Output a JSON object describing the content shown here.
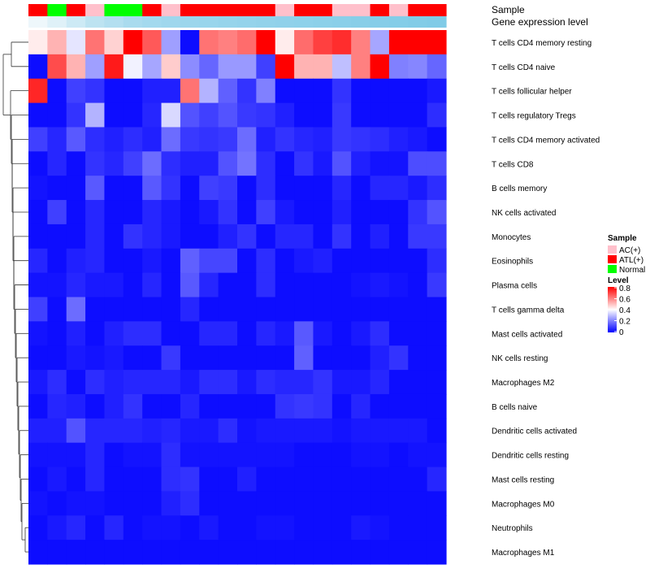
{
  "chart_data": {
    "type": "heatmap",
    "annotations": {
      "sample_title": "Sample",
      "gene_title": "Gene expression level",
      "sample_row": [
        "ATL(+)",
        "Normal",
        "ATL(+)",
        "AC(+)",
        "Normal",
        "Normal",
        "ATL(+)",
        "AC(+)",
        "ATL(+)",
        "ATL(+)",
        "ATL(+)",
        "ATL(+)",
        "ATL(+)",
        "AC(+)",
        "ATL(+)",
        "ATL(+)",
        "AC(+)",
        "AC(+)",
        "ATL(+)",
        "AC(+)",
        "ATL(+)",
        "ATL(+)"
      ],
      "gene_row_colors": [
        "#eef7fb",
        "#dff1f8",
        "#cdeaf5",
        "#bde3f1",
        "#b3dff0",
        "#a9dbee",
        "#a3d9ee",
        "#9fd7ed",
        "#9cd6ec",
        "#99d5ec",
        "#96d4eb",
        "#94d3eb",
        "#92d2ea",
        "#90d1ea",
        "#8ed1ea",
        "#8cd0e9",
        "#8acfe9",
        "#88cee8",
        "#86cde8",
        "#84cde8",
        "#82cce7",
        "#80cbe7"
      ]
    },
    "rows": [
      "T cells CD4 memory resting",
      "T cells CD4 naive",
      "T cells follicular helper",
      "T cells regulatory  Tregs",
      "T cells CD4 memory activated",
      "T cells CD8",
      "B cells memory",
      "NK cells activated",
      "Monocytes",
      "Eosinophils",
      "Plasma cells",
      "T cells gamma delta",
      "Mast cells activated",
      "NK cells resting",
      "Macrophages M2",
      "B cells naive",
      "Dendritic cells activated",
      "Dendritic cells resting",
      "Mast cells resting",
      "Macrophages M0",
      "Neutrophils",
      "Macrophages M1"
    ],
    "values": [
      [
        0.43,
        0.52,
        0.36,
        0.62,
        0.47,
        0.8,
        0.66,
        0.25,
        0.02,
        0.62,
        0.6,
        0.63,
        0.8,
        0.43,
        0.63,
        0.7,
        0.73,
        0.6,
        0.26,
        0.8,
        0.8,
        0.8
      ],
      [
        0.02,
        0.68,
        0.52,
        0.25,
        0.76,
        0.38,
        0.26,
        0.48,
        0.22,
        0.16,
        0.24,
        0.24,
        0.1,
        0.8,
        0.52,
        0.52,
        0.3,
        0.6,
        0.8,
        0.2,
        0.21,
        0.16
      ],
      [
        0.74,
        0.02,
        0.1,
        0.08,
        0.02,
        0.02,
        0.05,
        0.05,
        0.62,
        0.28,
        0.15,
        0.08,
        0.2,
        0.02,
        0.02,
        0.02,
        0.08,
        0.02,
        0.02,
        0.02,
        0.02,
        0.04
      ],
      [
        0.02,
        0.02,
        0.08,
        0.28,
        0.02,
        0.02,
        0.06,
        0.34,
        0.13,
        0.1,
        0.13,
        0.09,
        0.08,
        0.05,
        0.02,
        0.02,
        0.09,
        0.02,
        0.02,
        0.02,
        0.02,
        0.07
      ],
      [
        0.1,
        0.06,
        0.14,
        0.07,
        0.05,
        0.07,
        0.05,
        0.17,
        0.09,
        0.08,
        0.09,
        0.17,
        0.05,
        0.08,
        0.06,
        0.05,
        0.09,
        0.08,
        0.07,
        0.05,
        0.04,
        0.02
      ],
      [
        0.02,
        0.06,
        0.02,
        0.08,
        0.06,
        0.1,
        0.17,
        0.07,
        0.05,
        0.05,
        0.13,
        0.18,
        0.07,
        0.02,
        0.08,
        0.04,
        0.13,
        0.05,
        0.03,
        0.03,
        0.12,
        0.12
      ],
      [
        0.03,
        0.02,
        0.02,
        0.14,
        0.02,
        0.02,
        0.14,
        0.08,
        0.02,
        0.1,
        0.09,
        0.02,
        0.07,
        0.02,
        0.02,
        0.02,
        0.06,
        0.02,
        0.06,
        0.06,
        0.04,
        0.07
      ],
      [
        0.02,
        0.1,
        0.02,
        0.06,
        0.02,
        0.02,
        0.06,
        0.04,
        0.02,
        0.04,
        0.08,
        0.02,
        0.1,
        0.04,
        0.02,
        0.02,
        0.05,
        0.02,
        0.02,
        0.02,
        0.08,
        0.13
      ],
      [
        0.02,
        0.02,
        0.02,
        0.06,
        0.02,
        0.08,
        0.06,
        0.04,
        0.02,
        0.02,
        0.05,
        0.08,
        0.02,
        0.06,
        0.06,
        0.02,
        0.08,
        0.02,
        0.05,
        0.02,
        0.09,
        0.09
      ],
      [
        0.06,
        0.02,
        0.05,
        0.06,
        0.02,
        0.02,
        0.04,
        0.02,
        0.15,
        0.11,
        0.11,
        0.02,
        0.07,
        0.02,
        0.04,
        0.05,
        0.02,
        0.02,
        0.02,
        0.02,
        0.02,
        0.07
      ],
      [
        0.03,
        0.03,
        0.06,
        0.04,
        0.04,
        0.02,
        0.06,
        0.02,
        0.14,
        0.06,
        0.02,
        0.02,
        0.07,
        0.02,
        0.02,
        0.02,
        0.02,
        0.03,
        0.04,
        0.03,
        0.02,
        0.09
      ],
      [
        0.1,
        0.02,
        0.17,
        0.02,
        0.02,
        0.02,
        0.02,
        0.02,
        0.06,
        0.02,
        0.02,
        0.02,
        0.02,
        0.02,
        0.02,
        0.02,
        0.02,
        0.02,
        0.02,
        0.02,
        0.02,
        0.02
      ],
      [
        0.03,
        0.02,
        0.05,
        0.02,
        0.05,
        0.07,
        0.07,
        0.02,
        0.02,
        0.06,
        0.06,
        0.02,
        0.06,
        0.04,
        0.14,
        0.04,
        0.02,
        0.04,
        0.07,
        0.02,
        0.02,
        0.02
      ],
      [
        0.02,
        0.02,
        0.04,
        0.03,
        0.04,
        0.02,
        0.02,
        0.09,
        0.02,
        0.02,
        0.02,
        0.02,
        0.02,
        0.02,
        0.15,
        0.02,
        0.02,
        0.02,
        0.05,
        0.08,
        0.02,
        0.02
      ],
      [
        0.04,
        0.07,
        0.02,
        0.07,
        0.05,
        0.06,
        0.06,
        0.06,
        0.04,
        0.07,
        0.07,
        0.04,
        0.07,
        0.06,
        0.06,
        0.08,
        0.04,
        0.04,
        0.06,
        0.02,
        0.02,
        0.02
      ],
      [
        0.02,
        0.06,
        0.05,
        0.02,
        0.05,
        0.08,
        0.02,
        0.02,
        0.06,
        0.02,
        0.02,
        0.02,
        0.02,
        0.08,
        0.09,
        0.08,
        0.02,
        0.06,
        0.02,
        0.02,
        0.02,
        0.02
      ],
      [
        0.05,
        0.05,
        0.13,
        0.06,
        0.06,
        0.06,
        0.05,
        0.06,
        0.04,
        0.04,
        0.07,
        0.03,
        0.04,
        0.04,
        0.04,
        0.04,
        0.03,
        0.04,
        0.04,
        0.04,
        0.04,
        0.02
      ],
      [
        0.03,
        0.03,
        0.03,
        0.06,
        0.02,
        0.03,
        0.03,
        0.07,
        0.03,
        0.03,
        0.03,
        0.03,
        0.03,
        0.03,
        0.02,
        0.02,
        0.02,
        0.03,
        0.03,
        0.02,
        0.03,
        0.03
      ],
      [
        0.02,
        0.04,
        0.02,
        0.06,
        0.02,
        0.02,
        0.02,
        0.07,
        0.08,
        0.02,
        0.02,
        0.05,
        0.02,
        0.02,
        0.02,
        0.02,
        0.02,
        0.02,
        0.02,
        0.02,
        0.02,
        0.06
      ],
      [
        0.03,
        0.02,
        0.03,
        0.03,
        0.02,
        0.02,
        0.02,
        0.05,
        0.07,
        0.02,
        0.02,
        0.02,
        0.02,
        0.02,
        0.02,
        0.02,
        0.02,
        0.02,
        0.02,
        0.02,
        0.02,
        0.02
      ],
      [
        0.02,
        0.04,
        0.06,
        0.02,
        0.06,
        0.02,
        0.03,
        0.03,
        0.02,
        0.04,
        0.02,
        0.02,
        0.03,
        0.03,
        0.02,
        0.02,
        0.02,
        0.04,
        0.03,
        0.02,
        0.02,
        0.02
      ],
      [
        0.02,
        0.02,
        0.02,
        0.02,
        0.02,
        0.02,
        0.02,
        0.02,
        0.02,
        0.02,
        0.02,
        0.02,
        0.02,
        0.02,
        0.02,
        0.02,
        0.02,
        0.02,
        0.02,
        0.02,
        0.02,
        0.02
      ]
    ],
    "scale": {
      "min": 0,
      "mid": 0.4,
      "max": 0.8,
      "low_color": "#0000ff",
      "mid_color": "#ffffff",
      "high_color": "#ff0000"
    },
    "legend": {
      "sample_title": "Sample",
      "sample_items": [
        {
          "label": "AC(+)",
          "color": "#ffc0cb"
        },
        {
          "label": "ATL(+)",
          "color": "#ff0000"
        },
        {
          "label": "Normal",
          "color": "#00ff00"
        }
      ],
      "sample_colors": {
        "AC(+)": "#ffc0cb",
        "ATL(+)": "#ff0000",
        "Normal": "#00ff00"
      },
      "level_title": "Level",
      "level_ticks": [
        "0.8",
        "0.6",
        "0.4",
        "0.2",
        "0"
      ],
      "placement": "right"
    }
  }
}
